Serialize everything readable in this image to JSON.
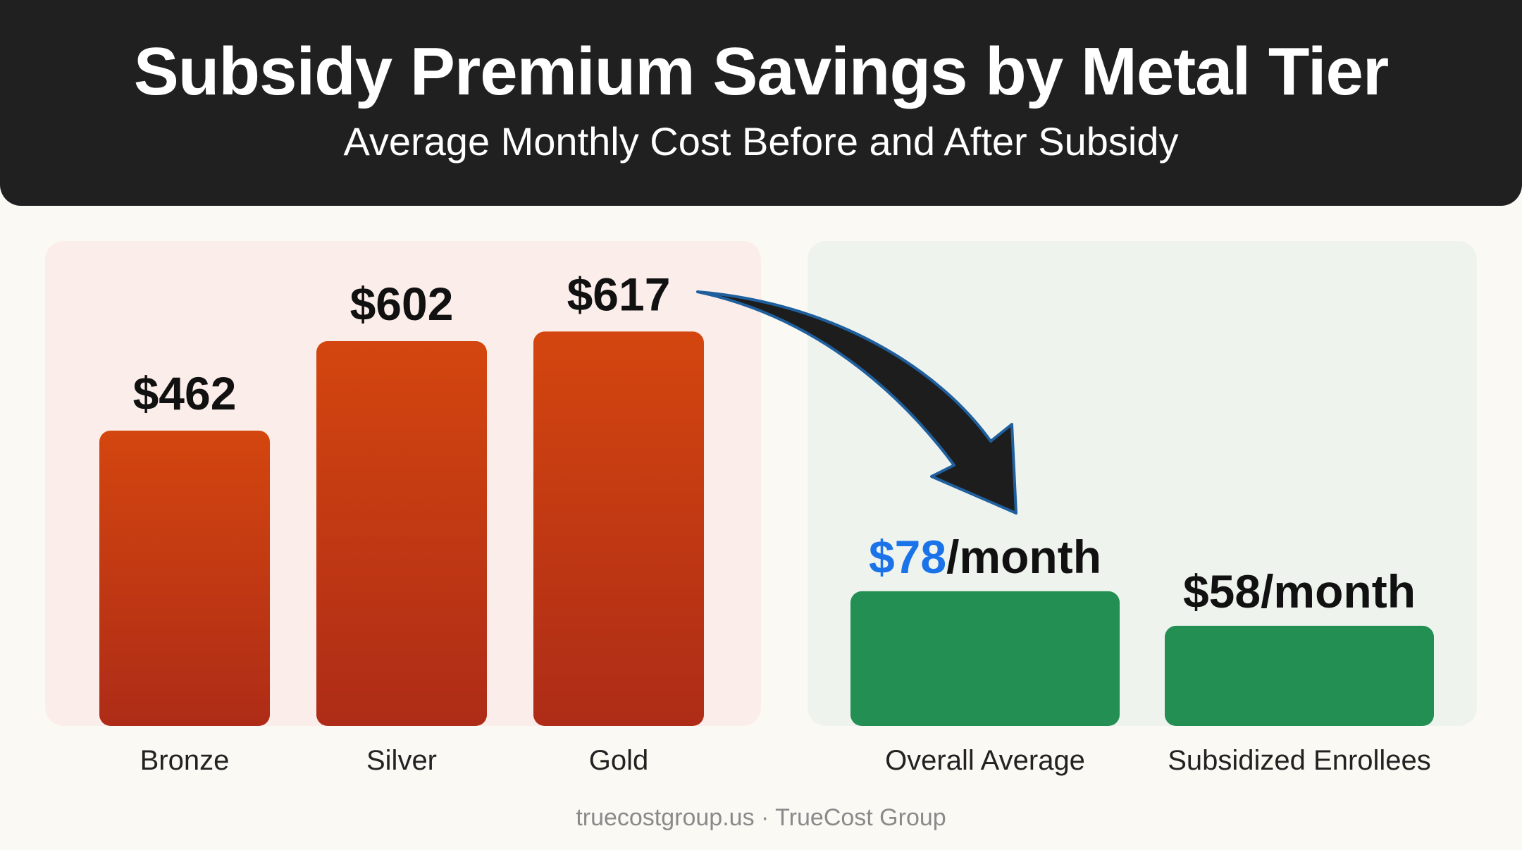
{
  "header": {
    "title": "Subsidy Premium Savings by Metal Tier",
    "subtitle": "Average Monthly Cost Before and After Subsidy"
  },
  "footer": {
    "source": "truecostgroup.us · TrueCost Group"
  },
  "colors": {
    "before_bar_top": "#d4460f",
    "before_bar_bottom": "#ae2c17",
    "after_bar": "#248f52",
    "highlight_text": "#1a73e8",
    "before_panel": "#fbeeea",
    "after_panel": "#eef3ee",
    "header_bg": "#202020"
  },
  "chart_data": {
    "type": "bar",
    "groups": [
      {
        "group": "before",
        "categories": [
          "Bronze",
          "Silver",
          "Gold"
        ],
        "values": [
          462,
          602,
          617
        ],
        "value_labels": [
          "$462",
          "$602",
          "$617"
        ]
      },
      {
        "group": "after",
        "categories": [
          "Overall Average",
          "Subsidized Enrollees"
        ],
        "values": [
          78,
          58
        ],
        "value_labels": [
          {
            "highlight": "$78",
            "rest": "/month"
          },
          {
            "highlight": "",
            "rest": "$58/month"
          }
        ]
      }
    ],
    "annotations": [
      "arrow from Gold bar to Overall Average bar"
    ]
  }
}
